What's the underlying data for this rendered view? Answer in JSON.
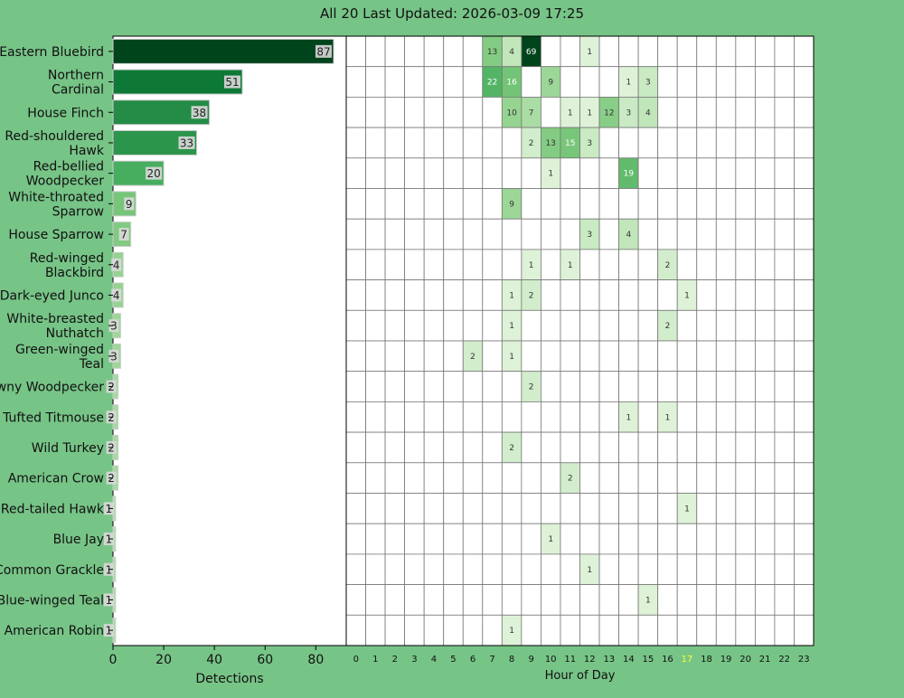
{
  "title": "All 20 Last Updated: 2026-03-09 17:25",
  "chart_data": [
    {
      "type": "bar",
      "orientation": "horizontal",
      "categories": [
        "Eastern Bluebird",
        "Northern Cardinal",
        "House Finch",
        "Red-shouldered Hawk",
        "Red-bellied Woodpecker",
        "White-throated Sparrow",
        "House Sparrow",
        "Red-winged Blackbird",
        "Dark-eyed Junco",
        "White-breasted Nuthatch",
        "Green-winged Teal",
        "Downy Woodpecker",
        "Tufted Titmouse",
        "Wild Turkey",
        "American Crow",
        "Red-tailed Hawk",
        "Blue Jay",
        "Common Grackle",
        "Blue-winged Teal",
        "American Robin"
      ],
      "values": [
        87,
        51,
        38,
        33,
        20,
        9,
        7,
        4,
        4,
        3,
        3,
        2,
        2,
        2,
        2,
        1,
        1,
        1,
        1,
        1
      ],
      "xlabel": "Detections",
      "xlim": [
        0,
        92
      ],
      "xticks": [
        0,
        20,
        40,
        60,
        80
      ]
    },
    {
      "type": "heatmap",
      "x": [
        "0",
        "1",
        "2",
        "3",
        "4",
        "5",
        "6",
        "7",
        "8",
        "9",
        "10",
        "11",
        "12",
        "13",
        "14",
        "15",
        "16",
        "17",
        "18",
        "19",
        "20",
        "21",
        "22",
        "23"
      ],
      "xlabel": "Hour of Day",
      "highlight_hour": "17",
      "highlight_color": "#ffff33",
      "rows": [
        [
          0,
          0,
          0,
          0,
          0,
          0,
          0,
          13,
          4,
          69,
          0,
          0,
          1,
          0,
          0,
          0,
          0,
          0,
          0,
          0,
          0,
          0,
          0,
          0
        ],
        [
          0,
          0,
          0,
          0,
          0,
          0,
          0,
          22,
          16,
          0,
          9,
          0,
          0,
          0,
          1,
          3,
          0,
          0,
          0,
          0,
          0,
          0,
          0,
          0
        ],
        [
          0,
          0,
          0,
          0,
          0,
          0,
          0,
          0,
          10,
          7,
          0,
          1,
          1,
          12,
          3,
          4,
          0,
          0,
          0,
          0,
          0,
          0,
          0,
          0
        ],
        [
          0,
          0,
          0,
          0,
          0,
          0,
          0,
          0,
          0,
          2,
          13,
          15,
          3,
          0,
          0,
          0,
          0,
          0,
          0,
          0,
          0,
          0,
          0,
          0
        ],
        [
          0,
          0,
          0,
          0,
          0,
          0,
          0,
          0,
          0,
          0,
          1,
          0,
          0,
          0,
          19,
          0,
          0,
          0,
          0,
          0,
          0,
          0,
          0,
          0
        ],
        [
          0,
          0,
          0,
          0,
          0,
          0,
          0,
          0,
          9,
          0,
          0,
          0,
          0,
          0,
          0,
          0,
          0,
          0,
          0,
          0,
          0,
          0,
          0,
          0
        ],
        [
          0,
          0,
          0,
          0,
          0,
          0,
          0,
          0,
          0,
          0,
          0,
          0,
          3,
          0,
          4,
          0,
          0,
          0,
          0,
          0,
          0,
          0,
          0,
          0
        ],
        [
          0,
          0,
          0,
          0,
          0,
          0,
          0,
          0,
          0,
          1,
          0,
          1,
          0,
          0,
          0,
          0,
          2,
          0,
          0,
          0,
          0,
          0,
          0,
          0
        ],
        [
          0,
          0,
          0,
          0,
          0,
          0,
          0,
          0,
          1,
          2,
          0,
          0,
          0,
          0,
          0,
          0,
          0,
          1,
          0,
          0,
          0,
          0,
          0,
          0
        ],
        [
          0,
          0,
          0,
          0,
          0,
          0,
          0,
          0,
          1,
          0,
          0,
          0,
          0,
          0,
          0,
          0,
          2,
          0,
          0,
          0,
          0,
          0,
          0,
          0
        ],
        [
          0,
          0,
          0,
          0,
          0,
          0,
          2,
          0,
          1,
          0,
          0,
          0,
          0,
          0,
          0,
          0,
          0,
          0,
          0,
          0,
          0,
          0,
          0,
          0
        ],
        [
          0,
          0,
          0,
          0,
          0,
          0,
          0,
          0,
          0,
          2,
          0,
          0,
          0,
          0,
          0,
          0,
          0,
          0,
          0,
          0,
          0,
          0,
          0,
          0
        ],
        [
          0,
          0,
          0,
          0,
          0,
          0,
          0,
          0,
          0,
          0,
          0,
          0,
          0,
          0,
          1,
          0,
          1,
          0,
          0,
          0,
          0,
          0,
          0,
          0
        ],
        [
          0,
          0,
          0,
          0,
          0,
          0,
          0,
          0,
          2,
          0,
          0,
          0,
          0,
          0,
          0,
          0,
          0,
          0,
          0,
          0,
          0,
          0,
          0,
          0
        ],
        [
          0,
          0,
          0,
          0,
          0,
          0,
          0,
          0,
          0,
          0,
          0,
          2,
          0,
          0,
          0,
          0,
          0,
          0,
          0,
          0,
          0,
          0,
          0,
          0
        ],
        [
          0,
          0,
          0,
          0,
          0,
          0,
          0,
          0,
          0,
          0,
          0,
          0,
          0,
          0,
          0,
          0,
          0,
          1,
          0,
          0,
          0,
          0,
          0,
          0
        ],
        [
          0,
          0,
          0,
          0,
          0,
          0,
          0,
          0,
          0,
          0,
          1,
          0,
          0,
          0,
          0,
          0,
          0,
          0,
          0,
          0,
          0,
          0,
          0,
          0
        ],
        [
          0,
          0,
          0,
          0,
          0,
          0,
          0,
          0,
          0,
          0,
          0,
          0,
          1,
          0,
          0,
          0,
          0,
          0,
          0,
          0,
          0,
          0,
          0,
          0
        ],
        [
          0,
          0,
          0,
          0,
          0,
          0,
          0,
          0,
          0,
          0,
          0,
          0,
          0,
          0,
          0,
          1,
          0,
          0,
          0,
          0,
          0,
          0,
          0,
          0
        ],
        [
          0,
          0,
          0,
          0,
          0,
          0,
          0,
          0,
          1,
          0,
          0,
          0,
          0,
          0,
          0,
          0,
          0,
          0,
          0,
          0,
          0,
          0,
          0,
          0
        ]
      ],
      "colormap": "Greens"
    }
  ]
}
